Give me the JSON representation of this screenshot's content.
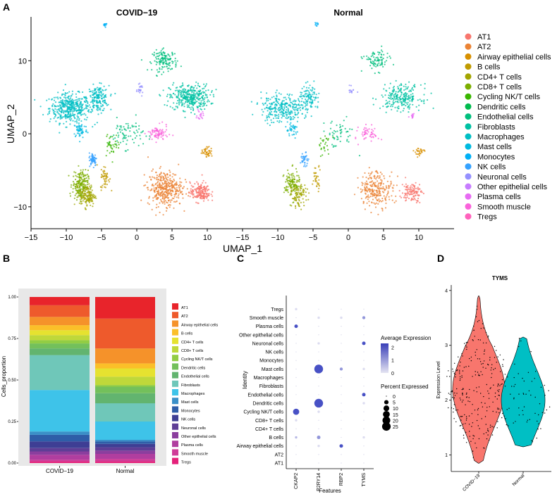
{
  "panel_letters": [
    "A",
    "B",
    "C",
    "D"
  ],
  "cell_types": [
    "AT1",
    "AT2",
    "Airway epithelial cells",
    "B cells",
    "CD4+ T cells",
    "CD8+ T cells",
    "Cycling NK/T cells",
    "Dendritic cells",
    "Endothelial cells",
    "Fibroblasts",
    "Macrophages",
    "Mast cells",
    "Monocytes",
    "NK cells",
    "Neuronal cells",
    "Other epithelial cells",
    "Plasma cells",
    "Smooth muscle",
    "Tregs"
  ],
  "umap_colors": [
    "#F8766D",
    "#EB8335",
    "#D89000",
    "#C09B00",
    "#A3A500",
    "#7CAE00",
    "#39B600",
    "#00BB4E",
    "#00BF7D",
    "#00C1A3",
    "#00BFC4",
    "#00BAE0",
    "#00B0F6",
    "#35A2FF",
    "#9590FF",
    "#C77CFF",
    "#E76BF3",
    "#FA62DB",
    "#FF62BC"
  ],
  "bar_colors": [
    "#E8242B",
    "#EE5A2C",
    "#F5922A",
    "#FBBF29",
    "#E6E230",
    "#BFD83A",
    "#92CD44",
    "#73C05B",
    "#62B46F",
    "#6FC7B9",
    "#3EC3E9",
    "#3A8FC8",
    "#2E5DA8",
    "#3E3E94",
    "#5E3E96",
    "#8B3E9E",
    "#B03E9F",
    "#CF3C98",
    "#E4217A"
  ],
  "chart_data": [
    {
      "panel": "A",
      "type": "scatter",
      "title_left": "COVID−19",
      "title_right": "Normal",
      "xlabel": "UMAP_1",
      "ylabel": "UMAP_2",
      "xticks": [
        "−15",
        "−10",
        "−5",
        "0",
        "5",
        "10"
      ],
      "xtick_values": [
        -15,
        -10,
        -5,
        0,
        5,
        10
      ],
      "yticks": [
        "−10",
        "0",
        "10"
      ],
      "ytick_values": [
        -10,
        0,
        10
      ],
      "xlim": [
        -15,
        15
      ],
      "ylim": [
        -13,
        16
      ],
      "clusters": [
        {
          "type": "Macrophages",
          "cx": -9.5,
          "cy": 3.5,
          "sx": 2.6,
          "sy": 1.8,
          "n": 420
        },
        {
          "type": "Macrophages",
          "cx": -5.5,
          "cy": 4.8,
          "sx": 1.4,
          "sy": 1.6,
          "n": 180
        },
        {
          "type": "Mast cells",
          "cx": -8.0,
          "cy": 0.5,
          "sx": 0.9,
          "sy": 1.0,
          "n": 60
        },
        {
          "type": "Fibroblasts",
          "cx": 7.5,
          "cy": 5.0,
          "sx": 2.6,
          "sy": 1.6,
          "n": 360
        },
        {
          "type": "Endothelial cells",
          "cx": 4.0,
          "cy": 10.0,
          "sx": 1.6,
          "sy": 1.3,
          "n": 140
        },
        {
          "type": "Endothelial cells",
          "cx": -1.5,
          "cy": 0.0,
          "sx": 2.2,
          "sy": 1.8,
          "n": 80
        },
        {
          "type": "Monocytes",
          "cx": -4.5,
          "cy": 15.0,
          "sx": 0.3,
          "sy": 0.3,
          "n": 14
        },
        {
          "type": "Neuronal cells",
          "cx": 0.5,
          "cy": 6.0,
          "sx": 0.35,
          "sy": 0.6,
          "n": 22
        },
        {
          "type": "Smooth muscle",
          "cx": 3.0,
          "cy": 0.0,
          "sx": 1.3,
          "sy": 1.0,
          "n": 80
        },
        {
          "type": "Plasma cells",
          "cx": 9.0,
          "cy": 2.5,
          "sx": 0.4,
          "sy": 0.6,
          "n": 18
        },
        {
          "type": "CD8+ T cells",
          "cx": -8.0,
          "cy": -7.0,
          "sx": 1.0,
          "sy": 1.8,
          "n": 200
        },
        {
          "type": "CD4+ T cells",
          "cx": -7.0,
          "cy": -8.5,
          "sx": 1.0,
          "sy": 1.4,
          "n": 140
        },
        {
          "type": "NK cells",
          "cx": -6.2,
          "cy": -3.5,
          "sx": 0.5,
          "sy": 0.8,
          "n": 60
        },
        {
          "type": "B cells",
          "cx": -4.5,
          "cy": -6.0,
          "sx": 0.6,
          "sy": 1.5,
          "n": 50
        },
        {
          "type": "AT2",
          "cx": 4.0,
          "cy": -7.5,
          "sx": 2.2,
          "sy": 2.2,
          "n": 380
        },
        {
          "type": "AT1",
          "cx": 9.0,
          "cy": -8.0,
          "sx": 1.3,
          "sy": 1.2,
          "n": 180
        },
        {
          "type": "Airway epithelial cells",
          "cx": 10.0,
          "cy": -2.5,
          "sx": 0.7,
          "sy": 0.6,
          "n": 45
        },
        {
          "type": "Cycling NK/T cells",
          "cx": -3.5,
          "cy": -1.5,
          "sx": 1.0,
          "sy": 1.4,
          "n": 40
        }
      ]
    },
    {
      "panel": "B",
      "type": "bar",
      "stacked": true,
      "categories": [
        "COVID−19",
        "Normal"
      ],
      "ylabel": "Cells_proportion",
      "yticks": [
        "0.00",
        "0.25",
        "0.50",
        "0.75",
        "1.00"
      ],
      "ytick_values": [
        0,
        0.25,
        0.5,
        0.75,
        1
      ],
      "ylim": [
        0,
        1
      ],
      "series": [
        {
          "name": "Tregs",
          "values": [
            0.01,
            0.01
          ]
        },
        {
          "name": "Smooth muscle",
          "values": [
            0.01,
            0.015
          ]
        },
        {
          "name": "Plasma cells",
          "values": [
            0.03,
            0.03
          ]
        },
        {
          "name": "Other epithelial cells",
          "values": [
            0.02,
            0.02
          ]
        },
        {
          "name": "Neuronal cells",
          "values": [
            0.02,
            0.02
          ]
        },
        {
          "name": "NK cells",
          "values": [
            0.04,
            0.02
          ]
        },
        {
          "name": "Monocytes",
          "values": [
            0.04,
            0.015
          ]
        },
        {
          "name": "Mast cells",
          "values": [
            0.02,
            0.01
          ]
        },
        {
          "name": "Macrophages",
          "values": [
            0.25,
            0.11
          ]
        },
        {
          "name": "Fibroblasts",
          "values": [
            0.21,
            0.11
          ]
        },
        {
          "name": "Endothelial cells",
          "values": [
            0.04,
            0.06
          ]
        },
        {
          "name": "Dendritic cells",
          "values": [
            0.03,
            0.04
          ]
        },
        {
          "name": "Cycling NK/T cells",
          "values": [
            0.02,
            0.01
          ]
        },
        {
          "name": "CD8+ T cells",
          "values": [
            0.03,
            0.05
          ]
        },
        {
          "name": "CD4+ T cells",
          "values": [
            0.03,
            0.05
          ]
        },
        {
          "name": "B cells",
          "values": [
            0.03,
            0.03
          ]
        },
        {
          "name": "Airway epithelial cells",
          "values": [
            0.05,
            0.09
          ]
        },
        {
          "name": "AT2",
          "values": [
            0.07,
            0.18
          ]
        },
        {
          "name": "AT1",
          "values": [
            0.05,
            0.13
          ]
        }
      ]
    },
    {
      "panel": "C",
      "type": "scatter",
      "subtype": "dotplot",
      "features": [
        "CKAP2",
        "P2RY14",
        "RBP2",
        "TYMS"
      ],
      "identities": [
        "AT1",
        "AT2",
        "Airway epithelial cells",
        "B cells",
        "CD4+ T cells",
        "CD8+ T cells",
        "Cycling NK/T cells",
        "Dendritic cells",
        "Endothelial cells",
        "Fibroblasts",
        "Macrophages",
        "Mast cells",
        "Monocytes",
        "NK cells",
        "Neuronal cells",
        "Other epithelial cells",
        "Plasma cells",
        "Smooth muscle",
        "Tregs"
      ],
      "xlabel": "Features",
      "ylabel": "Identity",
      "legend_color_title": "Average Expression",
      "legend_color_ticks": [
        "2",
        "1",
        "0"
      ],
      "legend_color_values": [
        2,
        1,
        0
      ],
      "legend_size_title": "Percent Expressed",
      "legend_size_ticks": [
        "0",
        "5",
        "10",
        "15",
        "20",
        "25"
      ],
      "legend_size_values": [
        0,
        5,
        10,
        15,
        20,
        25
      ],
      "percent_expressed": [
        [
          0,
          0,
          0,
          0
        ],
        [
          0,
          0,
          0,
          0
        ],
        [
          0,
          1,
          3,
          0
        ],
        [
          1,
          3,
          0,
          1
        ],
        [
          0,
          0,
          0,
          0
        ],
        [
          1,
          0,
          0,
          0
        ],
        [
          12,
          1,
          0,
          0
        ],
        [
          0,
          26,
          0,
          1
        ],
        [
          0,
          0,
          0,
          3
        ],
        [
          0,
          0,
          0,
          0
        ],
        [
          0,
          0,
          0,
          0
        ],
        [
          0,
          26,
          2,
          1
        ],
        [
          0,
          0,
          0,
          0
        ],
        [
          0,
          0,
          0,
          0
        ],
        [
          0,
          1,
          0,
          3
        ],
        [
          0,
          0,
          0,
          0
        ],
        [
          3,
          0,
          0,
          0
        ],
        [
          0,
          1,
          1,
          2
        ],
        [
          1,
          0,
          0,
          0
        ]
      ],
      "average_expression": [
        [
          0,
          0,
          0,
          0
        ],
        [
          0,
          0,
          0,
          0
        ],
        [
          0,
          0,
          2,
          0
        ],
        [
          0.5,
          1,
          0,
          0
        ],
        [
          0,
          0,
          0,
          0
        ],
        [
          0,
          0,
          0,
          0
        ],
        [
          2,
          0,
          0,
          0
        ],
        [
          0,
          2,
          0,
          0
        ],
        [
          0,
          0,
          0,
          2
        ],
        [
          0,
          0,
          0,
          0
        ],
        [
          0,
          0,
          0,
          0
        ],
        [
          0,
          2,
          1,
          0
        ],
        [
          0,
          0,
          0,
          0
        ],
        [
          0,
          0,
          0,
          0
        ],
        [
          0,
          0,
          0,
          2
        ],
        [
          0,
          0,
          0,
          0
        ],
        [
          2,
          0,
          0,
          0
        ],
        [
          0,
          0,
          0,
          1
        ],
        [
          0,
          0,
          0,
          0
        ]
      ]
    },
    {
      "panel": "D",
      "type": "scatter",
      "subtype": "violin",
      "title": "TYMS",
      "categories": [
        "COVID−19",
        "Normal"
      ],
      "ylabel": "Expression Level",
      "yticks": [
        "1",
        "2",
        "3",
        "4"
      ],
      "ytick_values": [
        1,
        2,
        3,
        4
      ],
      "ylim": [
        0.7,
        4.1
      ],
      "series": [
        {
          "name": "COVID−19",
          "color": "#F8766D",
          "min": 0.85,
          "max": 3.9,
          "median": 2.2
        },
        {
          "name": "Normal",
          "color": "#00BFC4",
          "min": 1.15,
          "max": 3.15,
          "median": 2.0
        }
      ]
    }
  ]
}
